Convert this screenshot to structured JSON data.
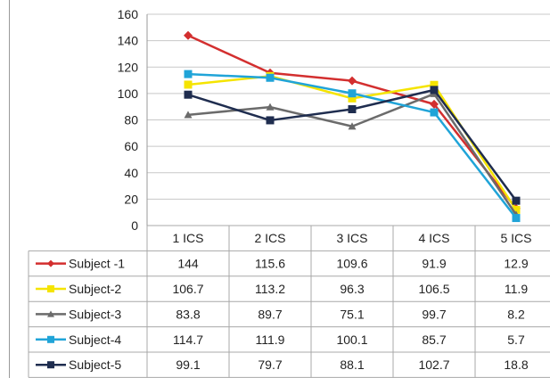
{
  "chart_data": {
    "type": "line",
    "categories": [
      "1 ICS",
      "2 ICS",
      "3 ICS",
      "4 ICS",
      "5 ICS"
    ],
    "ylim": [
      0,
      160
    ],
    "yticks": [
      "0",
      "20",
      "40",
      "60",
      "80",
      "100",
      "120",
      "140",
      "160"
    ],
    "grid": true,
    "legend": "data-table-left",
    "series": [
      {
        "name": "Subject -1",
        "color": "#d32f2f",
        "marker": "diamond",
        "values": [
          144,
          115.6,
          109.6,
          91.9,
          12.9
        ]
      },
      {
        "name": "Subject-2",
        "color": "#f5e400",
        "marker": "square",
        "values": [
          106.7,
          113.2,
          96.3,
          106.5,
          11.9
        ]
      },
      {
        "name": "Subject-3",
        "color": "#6b6b6b",
        "marker": "triangle",
        "values": [
          83.8,
          89.7,
          75.1,
          99.7,
          8.2
        ]
      },
      {
        "name": "Subject-4",
        "color": "#20a4d8",
        "marker": "square",
        "values": [
          114.7,
          111.9,
          100.1,
          85.7,
          5.7
        ]
      },
      {
        "name": "Subject-5",
        "color": "#1f2d4f",
        "marker": "square",
        "values": [
          99.1,
          79.7,
          88.1,
          102.7,
          18.8
        ]
      }
    ],
    "table_values": [
      [
        "144",
        "115.6",
        "109.6",
        "91.9",
        "12.9"
      ],
      [
        "106.7",
        "113.2",
        "96.3",
        "106.5",
        "11.9"
      ],
      [
        "83.8",
        "89.7",
        "75.1",
        "99.7",
        "8.2"
      ],
      [
        "114.7",
        "111.9",
        "100.1",
        "85.7",
        "5.7"
      ],
      [
        "99.1",
        "79.7",
        "88.1",
        "102.7",
        "18.8"
      ]
    ]
  }
}
